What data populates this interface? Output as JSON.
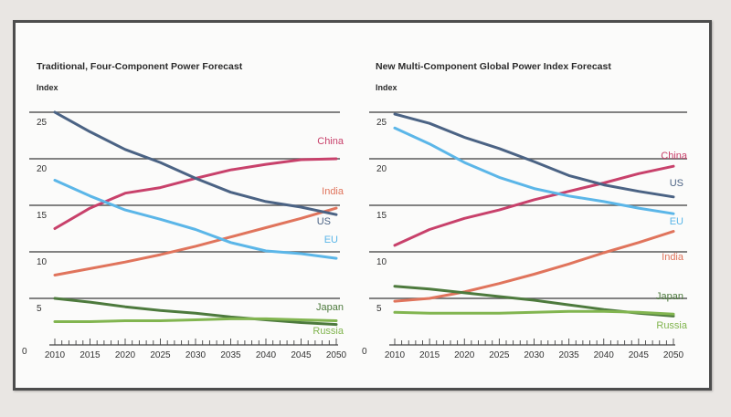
{
  "chart_data": [
    {
      "type": "line",
      "title": "Traditional, Four-Component Power Forecast",
      "ylabel": "Index",
      "xlabel": "",
      "ylim": [
        0,
        25
      ],
      "yticks": [
        0,
        5,
        10,
        15,
        20,
        25
      ],
      "xlim": [
        2010,
        2050
      ],
      "xticks": [
        2010,
        2015,
        2020,
        2025,
        2030,
        2035,
        2040,
        2045,
        2050
      ],
      "grid": true,
      "series": [
        {
          "name": "China",
          "color": "#c8416b",
          "x": [
            2010,
            2015,
            2020,
            2025,
            2030,
            2035,
            2040,
            2045,
            2050
          ],
          "values": [
            12.5,
            14.7,
            16.3,
            16.9,
            17.9,
            18.8,
            19.4,
            19.9,
            20.0
          ]
        },
        {
          "name": "India",
          "color": "#e0745c",
          "x": [
            2010,
            2015,
            2020,
            2025,
            2030,
            2035,
            2040,
            2045,
            2050
          ],
          "values": [
            7.5,
            8.2,
            8.9,
            9.7,
            10.6,
            11.6,
            12.6,
            13.6,
            14.7
          ]
        },
        {
          "name": "US",
          "color": "#4b6384",
          "x": [
            2010,
            2015,
            2020,
            2025,
            2030,
            2035,
            2040,
            2045,
            2050
          ],
          "values": [
            25.0,
            22.9,
            21.0,
            19.6,
            17.9,
            16.4,
            15.4,
            14.8,
            14.0
          ]
        },
        {
          "name": "EU",
          "color": "#5bb6e8",
          "x": [
            2010,
            2015,
            2020,
            2025,
            2030,
            2035,
            2040,
            2045,
            2050
          ],
          "values": [
            17.7,
            16.0,
            14.5,
            13.5,
            12.4,
            11.0,
            10.1,
            9.8,
            9.3
          ]
        },
        {
          "name": "Japan",
          "color": "#4d7a3d",
          "x": [
            2010,
            2015,
            2020,
            2025,
            2030,
            2035,
            2040,
            2045,
            2050
          ],
          "values": [
            5.0,
            4.6,
            4.1,
            3.7,
            3.4,
            3.0,
            2.7,
            2.4,
            2.2
          ]
        },
        {
          "name": "Russia",
          "color": "#82b550",
          "x": [
            2010,
            2015,
            2020,
            2025,
            2030,
            2035,
            2040,
            2045,
            2050
          ],
          "values": [
            2.5,
            2.5,
            2.6,
            2.6,
            2.7,
            2.8,
            2.8,
            2.7,
            2.6
          ]
        }
      ]
    },
    {
      "type": "line",
      "title": "New Multi-Component Global Power Index Forecast",
      "ylabel": "Index",
      "xlabel": "",
      "ylim": [
        0,
        25
      ],
      "yticks": [
        0,
        5,
        10,
        15,
        20,
        25
      ],
      "xlim": [
        2010,
        2050
      ],
      "xticks": [
        2010,
        2015,
        2020,
        2025,
        2030,
        2035,
        2040,
        2045,
        2050
      ],
      "grid": true,
      "series": [
        {
          "name": "China",
          "color": "#c8416b",
          "x": [
            2010,
            2015,
            2020,
            2025,
            2030,
            2035,
            2040,
            2045,
            2050
          ],
          "values": [
            10.7,
            12.4,
            13.6,
            14.5,
            15.6,
            16.5,
            17.4,
            18.4,
            19.2
          ]
        },
        {
          "name": "US",
          "color": "#4b6384",
          "x": [
            2010,
            2015,
            2020,
            2025,
            2030,
            2035,
            2040,
            2045,
            2050
          ],
          "values": [
            24.8,
            23.8,
            22.3,
            21.1,
            19.7,
            18.2,
            17.2,
            16.5,
            15.9
          ]
        },
        {
          "name": "EU",
          "color": "#5bb6e8",
          "x": [
            2010,
            2015,
            2020,
            2025,
            2030,
            2035,
            2040,
            2045,
            2050
          ],
          "values": [
            23.3,
            21.6,
            19.6,
            18.0,
            16.8,
            16.0,
            15.4,
            14.7,
            14.1
          ]
        },
        {
          "name": "India",
          "color": "#e0745c",
          "x": [
            2010,
            2015,
            2020,
            2025,
            2030,
            2035,
            2040,
            2045,
            2050
          ],
          "values": [
            4.7,
            5.0,
            5.7,
            6.6,
            7.6,
            8.7,
            9.9,
            11.0,
            12.2
          ]
        },
        {
          "name": "Japan",
          "color": "#4d7a3d",
          "x": [
            2010,
            2015,
            2020,
            2025,
            2030,
            2035,
            2040,
            2045,
            2050
          ],
          "values": [
            6.3,
            6.0,
            5.6,
            5.2,
            4.8,
            4.3,
            3.8,
            3.4,
            3.1
          ]
        },
        {
          "name": "Russia",
          "color": "#82b550",
          "x": [
            2010,
            2015,
            2020,
            2025,
            2030,
            2035,
            2040,
            2045,
            2050
          ],
          "values": [
            3.5,
            3.4,
            3.4,
            3.4,
            3.5,
            3.6,
            3.6,
            3.5,
            3.3
          ]
        }
      ]
    }
  ]
}
